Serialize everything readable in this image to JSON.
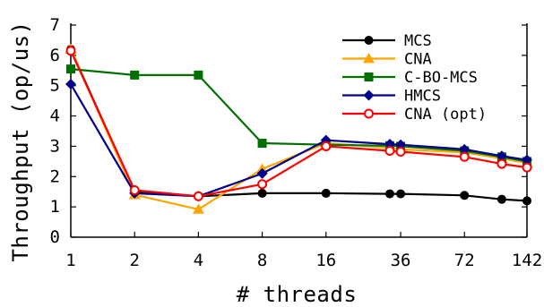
{
  "chart_data": {
    "type": "line",
    "title": "",
    "xlabel": "# threads",
    "ylabel": "Throughput (op/us)",
    "x_tick_labels": [
      "1",
      "2",
      "4",
      "8",
      "16",
      "36",
      "72",
      "142"
    ],
    "y_tick_labels": [
      "0",
      "1",
      "2",
      "3",
      "4",
      "5",
      "6",
      "7"
    ],
    "ylim": [
      0,
      7
    ],
    "x_scale": "log",
    "grid": false,
    "legend_position": "top-right",
    "series": [
      {
        "name": "MCS",
        "color": "#000000",
        "marker": "filled-circle",
        "x": [
          1,
          2,
          4,
          8,
          16,
          32,
          36,
          72,
          108,
          142
        ],
        "y": [
          6.2,
          1.5,
          1.35,
          1.45,
          1.45,
          1.43,
          1.43,
          1.38,
          1.25,
          1.2
        ]
      },
      {
        "name": "CNA",
        "color": "#ffa500",
        "marker": "filled-triangle",
        "x": [
          1,
          2,
          4,
          8,
          16,
          32,
          36,
          72,
          108,
          142
        ],
        "y": [
          6.2,
          1.4,
          0.92,
          2.25,
          3.1,
          2.95,
          2.9,
          2.8,
          2.6,
          2.45
        ]
      },
      {
        "name": "C-BO-MCS",
        "color": "#007000",
        "marker": "filled-square",
        "x": [
          1,
          2,
          4,
          8,
          16,
          32,
          36,
          72,
          108,
          142
        ],
        "y": [
          5.55,
          5.35,
          5.35,
          3.1,
          3.05,
          3.02,
          3.0,
          2.85,
          2.65,
          2.5
        ]
      },
      {
        "name": "HMCS",
        "color": "#00008b",
        "marker": "filled-diamond",
        "x": [
          1,
          2,
          4,
          8,
          16,
          32,
          36,
          72,
          108,
          142
        ],
        "y": [
          5.05,
          1.45,
          1.35,
          2.1,
          3.2,
          3.07,
          3.05,
          2.9,
          2.68,
          2.55
        ]
      },
      {
        "name": "CNA (opt)",
        "color": "#ff0000",
        "marker": "open-circle",
        "x": [
          1,
          2,
          4,
          8,
          16,
          32,
          36,
          72,
          108,
          142
        ],
        "y": [
          6.15,
          1.55,
          1.35,
          1.75,
          3.0,
          2.85,
          2.82,
          2.65,
          2.42,
          2.3
        ]
      }
    ]
  }
}
